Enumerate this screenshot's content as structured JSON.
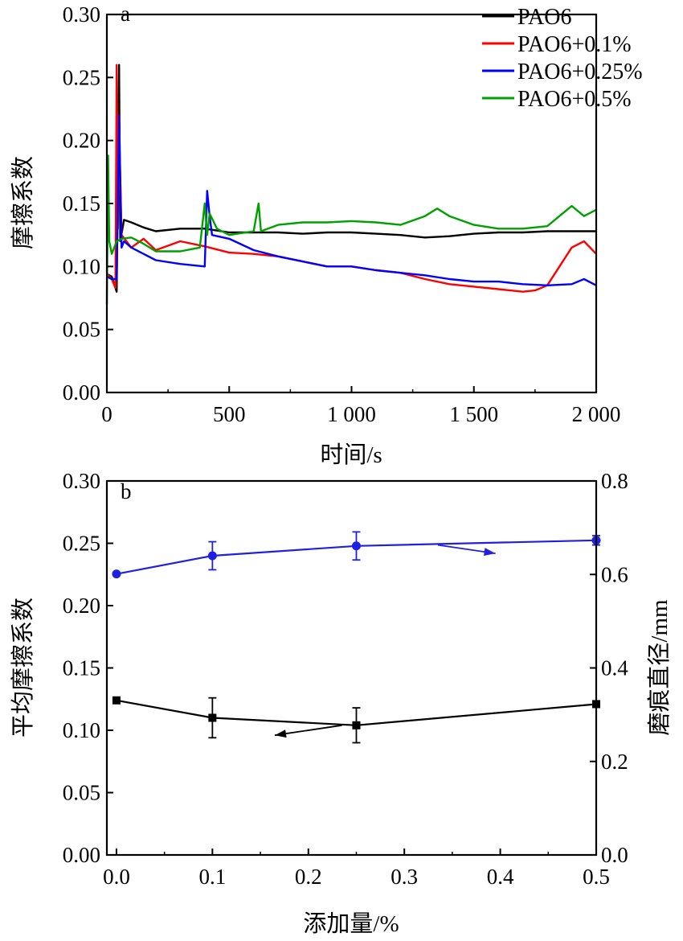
{
  "chart_data": [
    {
      "type": "line",
      "panel_label": "a",
      "xlabel": "时间/s",
      "ylabel": "摩擦系数",
      "xlim": [
        0,
        2000
      ],
      "ylim": [
        0.0,
        0.3
      ],
      "x_ticks": [
        0,
        500,
        1000,
        1500,
        2000
      ],
      "x_tick_labels": [
        "0",
        "500",
        "1 000",
        "1 500",
        "2 000"
      ],
      "y_ticks": [
        0.0,
        0.05,
        0.1,
        0.15,
        0.2,
        0.25,
        0.3
      ],
      "y_tick_labels": [
        "0.00",
        "0.05",
        "0.10",
        "0.15",
        "0.20",
        "0.25",
        "0.30"
      ],
      "legend_position": "top-right",
      "series": [
        {
          "name": "PAO6",
          "color": "#000000",
          "x": [
            0,
            20,
            40,
            50,
            55,
            70,
            100,
            150,
            200,
            300,
            400,
            500,
            600,
            700,
            800,
            900,
            1000,
            1100,
            1200,
            1300,
            1400,
            1500,
            1600,
            1700,
            1800,
            1900,
            2000
          ],
          "y": [
            0.094,
            0.092,
            0.08,
            0.26,
            0.12,
            0.137,
            0.135,
            0.131,
            0.128,
            0.13,
            0.13,
            0.127,
            0.127,
            0.127,
            0.126,
            0.127,
            0.127,
            0.126,
            0.125,
            0.123,
            0.124,
            0.126,
            0.127,
            0.127,
            0.128,
            0.128,
            0.128
          ]
        },
        {
          "name": "PAO6+0.1%",
          "color": "#ff0000",
          "x": [
            0,
            20,
            35,
            40,
            45,
            50,
            60,
            80,
            100,
            150,
            200,
            300,
            400,
            500,
            600,
            700,
            800,
            900,
            1000,
            1100,
            1200,
            1300,
            1400,
            1500,
            1600,
            1700,
            1750,
            1800,
            1850,
            1900,
            1950,
            2000
          ],
          "y": [
            0.094,
            0.09,
            0.083,
            0.26,
            0.13,
            0.21,
            0.125,
            0.12,
            0.115,
            0.122,
            0.113,
            0.12,
            0.116,
            0.111,
            0.11,
            0.108,
            0.104,
            0.1,
            0.1,
            0.097,
            0.095,
            0.09,
            0.086,
            0.084,
            0.082,
            0.08,
            0.081,
            0.085,
            0.1,
            0.115,
            0.12,
            0.11
          ]
        },
        {
          "name": "PAO6+0.25%",
          "color": "#0000ff",
          "x": [
            0,
            20,
            40,
            50,
            60,
            70,
            100,
            150,
            200,
            300,
            400,
            410,
            420,
            430,
            500,
            600,
            700,
            800,
            900,
            1000,
            1100,
            1200,
            1300,
            1400,
            1500,
            1600,
            1700,
            1800,
            1900,
            1950,
            2000
          ],
          "y": [
            0.092,
            0.09,
            0.09,
            0.22,
            0.115,
            0.12,
            0.115,
            0.11,
            0.105,
            0.102,
            0.1,
            0.16,
            0.14,
            0.125,
            0.122,
            0.113,
            0.108,
            0.104,
            0.1,
            0.1,
            0.097,
            0.095,
            0.093,
            0.09,
            0.088,
            0.088,
            0.086,
            0.085,
            0.086,
            0.09,
            0.085
          ]
        },
        {
          "name": "PAO6+0.5%",
          "color": "#00a000",
          "x": [
            0,
            5,
            10,
            20,
            40,
            60,
            100,
            150,
            200,
            300,
            380,
            400,
            410,
            420,
            450,
            500,
            600,
            620,
            630,
            700,
            800,
            900,
            1000,
            1100,
            1200,
            1300,
            1350,
            1400,
            1500,
            1600,
            1700,
            1800,
            1900,
            1950,
            2000
          ],
          "y": [
            0.07,
            0.188,
            0.12,
            0.11,
            0.12,
            0.122,
            0.123,
            0.118,
            0.112,
            0.112,
            0.115,
            0.15,
            0.125,
            0.142,
            0.13,
            0.125,
            0.128,
            0.15,
            0.128,
            0.133,
            0.135,
            0.135,
            0.136,
            0.135,
            0.133,
            0.14,
            0.146,
            0.14,
            0.133,
            0.13,
            0.13,
            0.132,
            0.148,
            0.14,
            0.145
          ]
        }
      ]
    },
    {
      "type": "line",
      "panel_label": "b",
      "xlabel": "添加量/%",
      "ylabel": "平均摩擦系数",
      "y2label": "磨痕直径/mm",
      "xlim": [
        -0.01,
        0.5
      ],
      "ylim": [
        0.0,
        0.3
      ],
      "y2lim": [
        0.0,
        0.8
      ],
      "x_ticks": [
        0.0,
        0.1,
        0.2,
        0.3,
        0.4,
        0.5
      ],
      "x_tick_labels": [
        "0.0",
        "0.1",
        "0.2",
        "0.3",
        "0.4",
        "0.5"
      ],
      "y_ticks": [
        0.0,
        0.05,
        0.1,
        0.15,
        0.2,
        0.25,
        0.3
      ],
      "y_tick_labels": [
        "0.00",
        "0.05",
        "0.10",
        "0.15",
        "0.20",
        "0.25",
        "0.30"
      ],
      "y2_ticks": [
        0.0,
        0.2,
        0.4,
        0.6,
        0.8
      ],
      "y2_tick_labels": [
        "0.0",
        "0.2",
        "0.4",
        "0.6",
        "0.8"
      ],
      "series": [
        {
          "axis": "left",
          "color": "#000000",
          "marker": "square",
          "x": [
            0.0,
            0.1,
            0.25,
            0.5
          ],
          "y": [
            0.124,
            0.11,
            0.104,
            0.121
          ],
          "err": [
            0.0,
            0.016,
            0.014,
            0.0
          ]
        },
        {
          "axis": "right",
          "color": "#2020e0",
          "marker": "circle",
          "x": [
            0.0,
            0.1,
            0.25,
            0.5
          ],
          "y": [
            0.601,
            0.64,
            0.661,
            0.673
          ],
          "err": [
            0.0,
            0.03,
            0.03,
            0.01
          ]
        }
      ]
    }
  ]
}
